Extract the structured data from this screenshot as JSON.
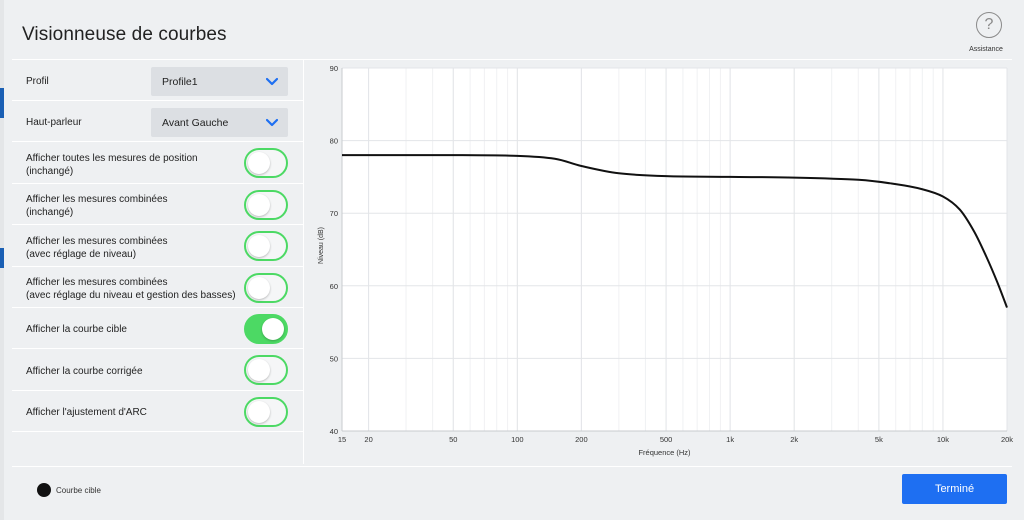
{
  "header": {
    "title": "Visionneuse de courbes",
    "assistance_label": "Assistance",
    "assistance_icon": "question-mark-icon"
  },
  "settings": {
    "profile": {
      "label": "Profil",
      "value": "Profile1"
    },
    "speaker": {
      "label": "Haut-parleur",
      "value": "Avant Gauche"
    },
    "toggles": [
      {
        "line1": "Afficher toutes les mesures de position",
        "line2": "(inchangé)",
        "on": false
      },
      {
        "line1": "Afficher les mesures combinées",
        "line2": "(inchangé)",
        "on": false
      },
      {
        "line1": "Afficher les mesures combinées",
        "line2": "(avec réglage de niveau)",
        "on": false
      },
      {
        "line1": "Afficher les mesures combinées",
        "line2": "(avec réglage du niveau et gestion des basses)",
        "on": false
      },
      {
        "line1": "Afficher la courbe cible",
        "line2": "",
        "on": true
      },
      {
        "line1": "Afficher la courbe corrigée",
        "line2": "",
        "on": false
      },
      {
        "line1": "Afficher l'ajustement d'ARC",
        "line2": "",
        "on": false
      }
    ]
  },
  "chart_data": {
    "type": "line",
    "xlabel": "Fréquence (Hz)",
    "ylabel": "Niveau (dB)",
    "xscale": "log",
    "xlim": [
      15,
      20000
    ],
    "ylim": [
      40,
      90
    ],
    "xticks": [
      15,
      20,
      50,
      100,
      200,
      500,
      1000,
      2000,
      5000,
      10000,
      20000
    ],
    "xtick_labels": [
      "15",
      "20",
      "50",
      "100",
      "200",
      "500",
      "1k",
      "2k",
      "5k",
      "10k",
      "20k"
    ],
    "yticks": [
      40,
      50,
      60,
      70,
      80,
      90
    ],
    "ytick_labels": [
      "40",
      "50",
      "60",
      "70",
      "80",
      "90"
    ],
    "grid": true,
    "series": [
      {
        "color": "#111111",
        "x": [
          15,
          50,
          100,
          150,
          200,
          300,
          500,
          1000,
          2000,
          4000,
          6000,
          8000,
          10000,
          12000,
          14000,
          16000,
          18000,
          20000
        ],
        "y": [
          78,
          78,
          77.9,
          77.5,
          76.5,
          75.5,
          75.1,
          75.0,
          74.9,
          74.6,
          74.0,
          73.3,
          72.3,
          70.5,
          67.5,
          64,
          60.5,
          57
        ]
      }
    ]
  },
  "legend": {
    "label": "Courbe cible",
    "color": "#111111"
  },
  "footer": {
    "done_label": "Terminé"
  },
  "colors": {
    "accent": "#1e6ff2",
    "toggle_on": "#4cd964",
    "dropdown_chevron": "#1e6ff2"
  }
}
